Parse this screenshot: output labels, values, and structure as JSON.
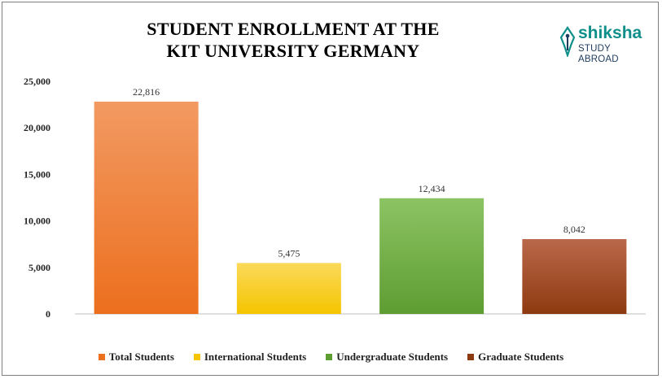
{
  "chart_data": {
    "type": "bar",
    "title_lines": [
      "STUDENT ENROLLMENT AT THE",
      "KIT UNIVERSITY GERMANY"
    ],
    "categories": [
      "Total Students",
      "International Students",
      "Undergraduate Students",
      "Graduate Students"
    ],
    "values": [
      22816,
      5475,
      12434,
      8042
    ],
    "value_labels": [
      "22,816",
      "5,475",
      "12,434",
      "8,042"
    ],
    "colors": [
      {
        "top": "#f29a62",
        "bottom": "#ec6f1e"
      },
      {
        "top": "#fbd95a",
        "bottom": "#f4c500"
      },
      {
        "top": "#8cc363",
        "bottom": "#5e9d32"
      },
      {
        "top": "#b9684a",
        "bottom": "#8e3a10"
      }
    ],
    "ylim": [
      0,
      25000
    ],
    "yticks": [
      0,
      5000,
      10000,
      15000,
      20000,
      25000
    ],
    "ytick_labels": [
      "0",
      "5,000",
      "10,000",
      "15,000",
      "20,000",
      "25,000"
    ],
    "grid": false,
    "legend_position": "bottom",
    "xlabel": "",
    "ylabel": ""
  },
  "logo": {
    "name": "shiksha",
    "subtitle": "STUDY ABROAD"
  }
}
